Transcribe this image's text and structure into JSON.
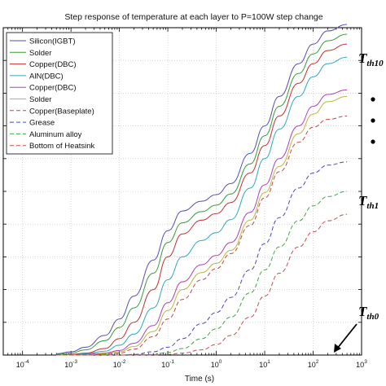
{
  "chart_data": {
    "type": "line",
    "title": "Step response of temperature at each layer to P=100W step change",
    "xlabel": "Time (s)",
    "ylabel": "",
    "x_scale": "log",
    "xlim": [
      4e-05,
      1000
    ],
    "ylim": [
      0,
      5
    ],
    "x_ticks": [
      {
        "base": "10",
        "exp": "-4",
        "value": 0.0001
      },
      {
        "base": "10",
        "exp": "-3",
        "value": 0.001
      },
      {
        "base": "10",
        "exp": "-2",
        "value": 0.01
      },
      {
        "base": "10",
        "exp": "-1",
        "value": 0.1
      },
      {
        "base": "10",
        "exp": "0",
        "value": 1
      },
      {
        "base": "10",
        "exp": "1",
        "value": 10
      },
      {
        "base": "10",
        "exp": "2",
        "value": 100
      },
      {
        "base": "10",
        "exp": "3",
        "value": 1000
      }
    ],
    "grid": true,
    "legend_position": "top-left",
    "x": [
      0.0005,
      0.001,
      0.002,
      0.005,
      0.01,
      0.02,
      0.05,
      0.1,
      0.2,
      0.5,
      1,
      2,
      5,
      10,
      20,
      50,
      100,
      200,
      500
    ],
    "series": [
      {
        "name": "Silicon(IGBT)",
        "color": "#5050b0",
        "dash": "solid",
        "values": [
          0.02,
          0.05,
          0.12,
          0.3,
          0.55,
          0.9,
          1.45,
          1.9,
          2.2,
          2.35,
          2.45,
          2.62,
          3.08,
          3.5,
          3.95,
          4.45,
          4.75,
          4.95,
          5.05
        ]
      },
      {
        "name": "Solder",
        "color": "#3a9a3a",
        "dash": "solid",
        "values": [
          0.01,
          0.03,
          0.08,
          0.22,
          0.42,
          0.72,
          1.25,
          1.72,
          2.02,
          2.19,
          2.29,
          2.46,
          2.92,
          3.35,
          3.8,
          4.3,
          4.6,
          4.8,
          4.9
        ]
      },
      {
        "name": "Copper(DBC)",
        "color": "#c03030",
        "dash": "solid",
        "values": [
          0.0,
          0.01,
          0.03,
          0.1,
          0.25,
          0.5,
          1.0,
          1.5,
          1.85,
          2.06,
          2.16,
          2.33,
          2.78,
          3.2,
          3.65,
          4.15,
          4.45,
          4.65,
          4.75
        ]
      },
      {
        "name": "AlN(DBC)",
        "color": "#30a8b8",
        "dash": "solid",
        "values": [
          0.0,
          0.0,
          0.02,
          0.06,
          0.15,
          0.32,
          0.72,
          1.15,
          1.5,
          1.75,
          1.87,
          2.07,
          2.55,
          3.0,
          3.45,
          3.95,
          4.25,
          4.45,
          4.55
        ]
      },
      {
        "name": "Copper(DBC)",
        "color": "#b040b0",
        "dash": "solid",
        "values": [
          0.0,
          0.0,
          0.01,
          0.03,
          0.07,
          0.18,
          0.45,
          0.8,
          1.12,
          1.38,
          1.52,
          1.72,
          2.18,
          2.6,
          3.0,
          3.5,
          3.8,
          3.98,
          4.05
        ]
      },
      {
        "name": "Solder",
        "color": "#b8b840",
        "dash": "solid",
        "values": [
          0.0,
          0.0,
          0.0,
          0.02,
          0.05,
          0.13,
          0.36,
          0.68,
          1.0,
          1.26,
          1.4,
          1.6,
          2.06,
          2.48,
          2.88,
          3.38,
          3.68,
          3.87,
          3.95
        ]
      },
      {
        "name": "Copper(Baseplate)",
        "color": "#c04848",
        "dash": "dashed",
        "values": [
          0.0,
          0.0,
          0.0,
          0.01,
          0.03,
          0.09,
          0.28,
          0.55,
          0.85,
          1.15,
          1.32,
          1.55,
          1.98,
          2.4,
          2.8,
          3.25,
          3.48,
          3.6,
          3.65
        ]
      },
      {
        "name": "Grease",
        "color": "#4848c0",
        "dash": "dashed",
        "values": [
          0.0,
          0.0,
          0.0,
          0.0,
          0.0,
          0.01,
          0.05,
          0.12,
          0.25,
          0.48,
          0.65,
          0.88,
          1.3,
          1.7,
          2.1,
          2.55,
          2.78,
          2.9,
          2.95
        ]
      },
      {
        "name": "Aluminum alloy",
        "color": "#48a048",
        "dash": "dashed",
        "values": [
          0.0,
          0.0,
          0.0,
          0.0,
          0.0,
          0.0,
          0.01,
          0.04,
          0.1,
          0.25,
          0.4,
          0.58,
          0.95,
          1.3,
          1.65,
          2.05,
          2.28,
          2.42,
          2.5
        ]
      },
      {
        "name": "Bottom of Heatsink",
        "color": "#c05050",
        "dash": "dashed",
        "values": [
          0.0,
          0.0,
          0.0,
          0.0,
          0.0,
          0.0,
          0.0,
          0.01,
          0.03,
          0.08,
          0.16,
          0.3,
          0.58,
          0.9,
          1.25,
          1.65,
          1.88,
          2.05,
          2.15
        ]
      }
    ],
    "annotations": [
      {
        "main": "T",
        "sub": "th10",
        "target_series": "Silicon(IGBT)"
      },
      {
        "main": "T",
        "sub": "th1",
        "target_series": "Aluminum alloy"
      },
      {
        "main": "T",
        "sub": "th0",
        "target_series": ""
      }
    ]
  }
}
